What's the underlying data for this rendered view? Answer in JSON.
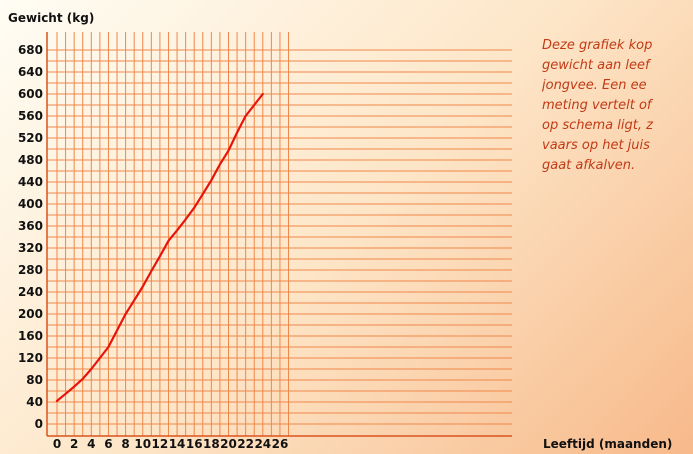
{
  "note_lines": [
    "Deze grafiek kop",
    "gewicht aan leef",
    "jongvee. Een ee",
    "meting vertelt of",
    "op schema ligt, z",
    "vaars op het juis",
    "gaat afkalven."
  ],
  "chart_data": {
    "type": "line",
    "title": "",
    "ylabel": "Gewicht (kg)",
    "xlabel": "Leeftijd (maanden)",
    "xlim": [
      0,
      27
    ],
    "ylim": [
      0,
      690
    ],
    "x_ticks": [
      0,
      2,
      4,
      6,
      8,
      10,
      12,
      14,
      16,
      18,
      20,
      22,
      24,
      26
    ],
    "y_ticks": [
      0,
      40,
      80,
      120,
      160,
      200,
      240,
      280,
      320,
      360,
      400,
      440,
      480,
      520,
      560,
      600,
      640,
      680
    ],
    "grid": true,
    "series": [
      {
        "color": "#e8140a",
        "x": [
          0,
          1,
          2,
          3,
          4,
          5,
          6,
          7,
          8,
          9,
          10,
          11,
          12,
          13,
          14,
          15,
          16,
          17,
          18,
          19,
          20,
          21,
          22,
          23,
          24
        ],
        "y": [
          42,
          55,
          68,
          82,
          100,
          120,
          140,
          170,
          200,
          225,
          250,
          278,
          305,
          333,
          352,
          372,
          393,
          418,
          443,
          472,
          497,
          530,
          560,
          580,
          600
        ]
      }
    ]
  },
  "colors": {
    "grid": "#f0874a",
    "axis": "#d9541f",
    "line": "#e8140a",
    "note_text": "#c23a16"
  }
}
